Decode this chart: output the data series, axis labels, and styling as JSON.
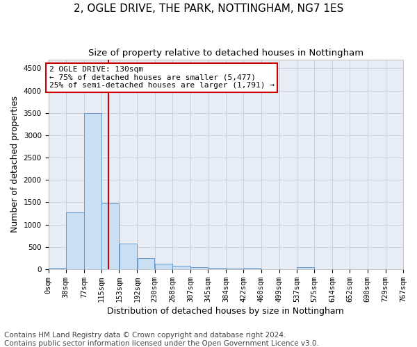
{
  "title1": "2, OGLE DRIVE, THE PARK, NOTTINGHAM, NG7 1ES",
  "title2": "Size of property relative to detached houses in Nottingham",
  "xlabel": "Distribution of detached houses by size in Nottingham",
  "ylabel": "Number of detached properties",
  "bin_edges": [
    0,
    38,
    77,
    115,
    153,
    192,
    230,
    268,
    307,
    345,
    384,
    422,
    460,
    499,
    537,
    575,
    614,
    652,
    690,
    729,
    767
  ],
  "bin_labels": [
    "0sqm",
    "38sqm",
    "77sqm",
    "115sqm",
    "153sqm",
    "192sqm",
    "230sqm",
    "268sqm",
    "307sqm",
    "345sqm",
    "384sqm",
    "422sqm",
    "460sqm",
    "499sqm",
    "537sqm",
    "575sqm",
    "614sqm",
    "652sqm",
    "690sqm",
    "729sqm",
    "767sqm"
  ],
  "bar_heights": [
    30,
    1270,
    3500,
    1480,
    580,
    240,
    115,
    80,
    50,
    30,
    10,
    30,
    5,
    5,
    50,
    5,
    5,
    5,
    5,
    5
  ],
  "bar_color": "#cce0f5",
  "bar_edgecolor": "#6699cc",
  "property_size": 130,
  "vline_color": "#cc0000",
  "annotation_line1": "2 OGLE DRIVE: 130sqm",
  "annotation_line2": "← 75% of detached houses are smaller (5,477)",
  "annotation_line3": "25% of semi-detached houses are larger (1,791) →",
  "annotation_box_color": "#ffffff",
  "annotation_box_edgecolor": "#cc0000",
  "ylim": [
    0,
    4700
  ],
  "yticks": [
    0,
    500,
    1000,
    1500,
    2000,
    2500,
    3000,
    3500,
    4000,
    4500
  ],
  "grid_color": "#c8ccd8",
  "bg_color": "#e8ecf4",
  "footer1": "Contains HM Land Registry data © Crown copyright and database right 2024.",
  "footer2": "Contains public sector information licensed under the Open Government Licence v3.0.",
  "title1_fontsize": 11,
  "title2_fontsize": 9.5,
  "xlabel_fontsize": 9,
  "ylabel_fontsize": 9,
  "tick_fontsize": 7.5,
  "annot_fontsize": 8,
  "footer_fontsize": 7.5
}
